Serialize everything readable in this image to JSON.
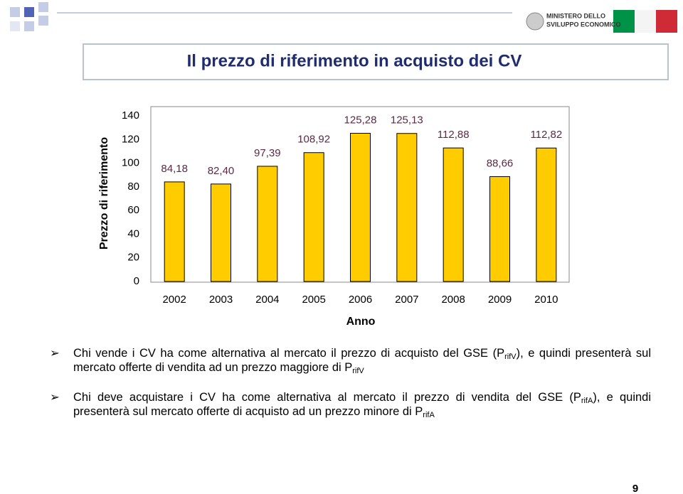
{
  "chart_data": {
    "type": "bar",
    "title": "Il prezzo di riferimento in acquisto dei CV",
    "y_label": "Prezzo di riferimento",
    "x_label": "Anno",
    "categories": [
      "2002",
      "2003",
      "2004",
      "2005",
      "2006",
      "2007",
      "2008",
      "2009",
      "2010"
    ],
    "values": [
      84.18,
      82.4,
      97.39,
      108.92,
      125.28,
      125.13,
      112.88,
      88.66,
      112.82
    ],
    "value_labels": [
      "84,18",
      "82,40",
      "97,39",
      "108,92",
      "125,28",
      "125,13",
      "112,88",
      "88,66",
      "112,82"
    ],
    "color": "#ffcc00",
    "label_color": "#5a2a45",
    "ylim": [
      0,
      140
    ],
    "yticks": [
      0,
      20,
      40,
      60,
      80,
      100,
      120,
      140
    ],
    "grid": false
  },
  "logo": [
    "MINISTERO DELLO",
    "SVILUPPO ECONOMICO"
  ],
  "bullets": [
    [
      {
        "text": "Chi vende i CV ha come alternativa al mercato il prezzo di acquisto del GSE (P"
      },
      {
        "sub": "rifV"
      },
      {
        "text": "), e quindi presenterà sul mercato offerte di vendita ad un prezzo maggiore di P"
      },
      {
        "sub": "rifV"
      }
    ],
    [
      {
        "text": "Chi deve acquistare i CV ha come alternativa al mercato il prezzo di vendita del GSE (P"
      },
      {
        "sub": "rifA"
      },
      {
        "text": "), e quindi presenterà sul mercato offerte di acquisto ad un prezzo minore di P"
      },
      {
        "sub": "rifA"
      }
    ]
  ],
  "page_number": "9"
}
